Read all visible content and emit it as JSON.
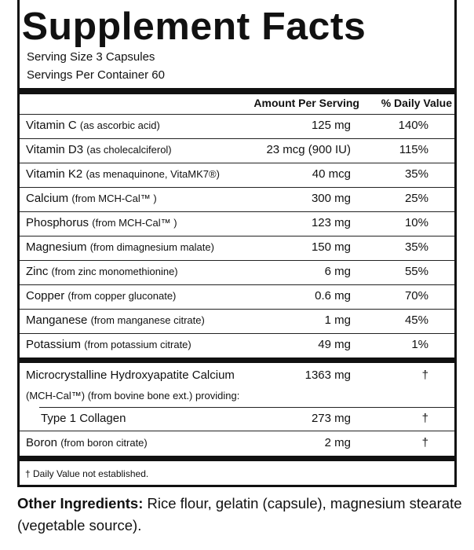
{
  "header": {
    "title": "Supplement Facts",
    "serving_size_label": "Serving Size",
    "serving_size": "3 Capsules",
    "servings_label": "Servings Per Container",
    "servings": "60"
  },
  "columns": {
    "amount": "Amount Per Serving",
    "dv": "% Daily Value"
  },
  "rows": [
    {
      "name": "Vitamin C",
      "source": "(as ascorbic acid)",
      "amount": "125 mg",
      "dv": "140%"
    },
    {
      "name": "Vitamin D3",
      "source": "(as cholecalciferol)",
      "amount": "23 mcg (900 IU)",
      "dv": "115%"
    },
    {
      "name": "Vitamin K2",
      "source": "(as menaquinone, VitaMK7®)",
      "amount": "40 mcg",
      "dv": "35%"
    },
    {
      "name": "Calcium",
      "source": "(from MCH-Cal™ )",
      "amount": "300 mg",
      "dv": "25%"
    },
    {
      "name": "Phosphorus",
      "source": "(from MCH-Cal™ )",
      "amount": "123 mg",
      "dv": "10%"
    },
    {
      "name": "Magnesium",
      "source": "(from dimagnesium malate)",
      "amount": "150 mg",
      "dv": "35%"
    },
    {
      "name": "Zinc",
      "source": "(from zinc monomethionine)",
      "amount": "6 mg",
      "dv": "55%"
    },
    {
      "name": "Copper",
      "source": "(from copper gluconate)",
      "amount": "0.6 mg",
      "dv": "70%"
    },
    {
      "name": "Manganese",
      "source": "(from manganese citrate)",
      "amount": "1 mg",
      "dv": "45%"
    },
    {
      "name": "Potassium",
      "source": "(from potassium citrate)",
      "amount": "49 mg",
      "dv": "1%"
    }
  ],
  "blend": {
    "name": "Microcrystalline Hydroxyapatite Calcium",
    "source": "(MCH-Cal™) (from bovine bone ext.) providing:",
    "amount": "1363 mg",
    "dv": "†",
    "sub": {
      "name": "Type 1 Collagen",
      "amount": "273 mg",
      "dv": "†"
    }
  },
  "boron": {
    "name": "Boron",
    "source": "(from boron citrate)",
    "amount": "2 mg",
    "dv": "†"
  },
  "footnote": "† Daily Value not established.",
  "other_ingredients": {
    "label": "Other Ingredients:",
    "text": "Rice flour, gelatin (capsule), magnesium stearate (vegetable source)."
  }
}
